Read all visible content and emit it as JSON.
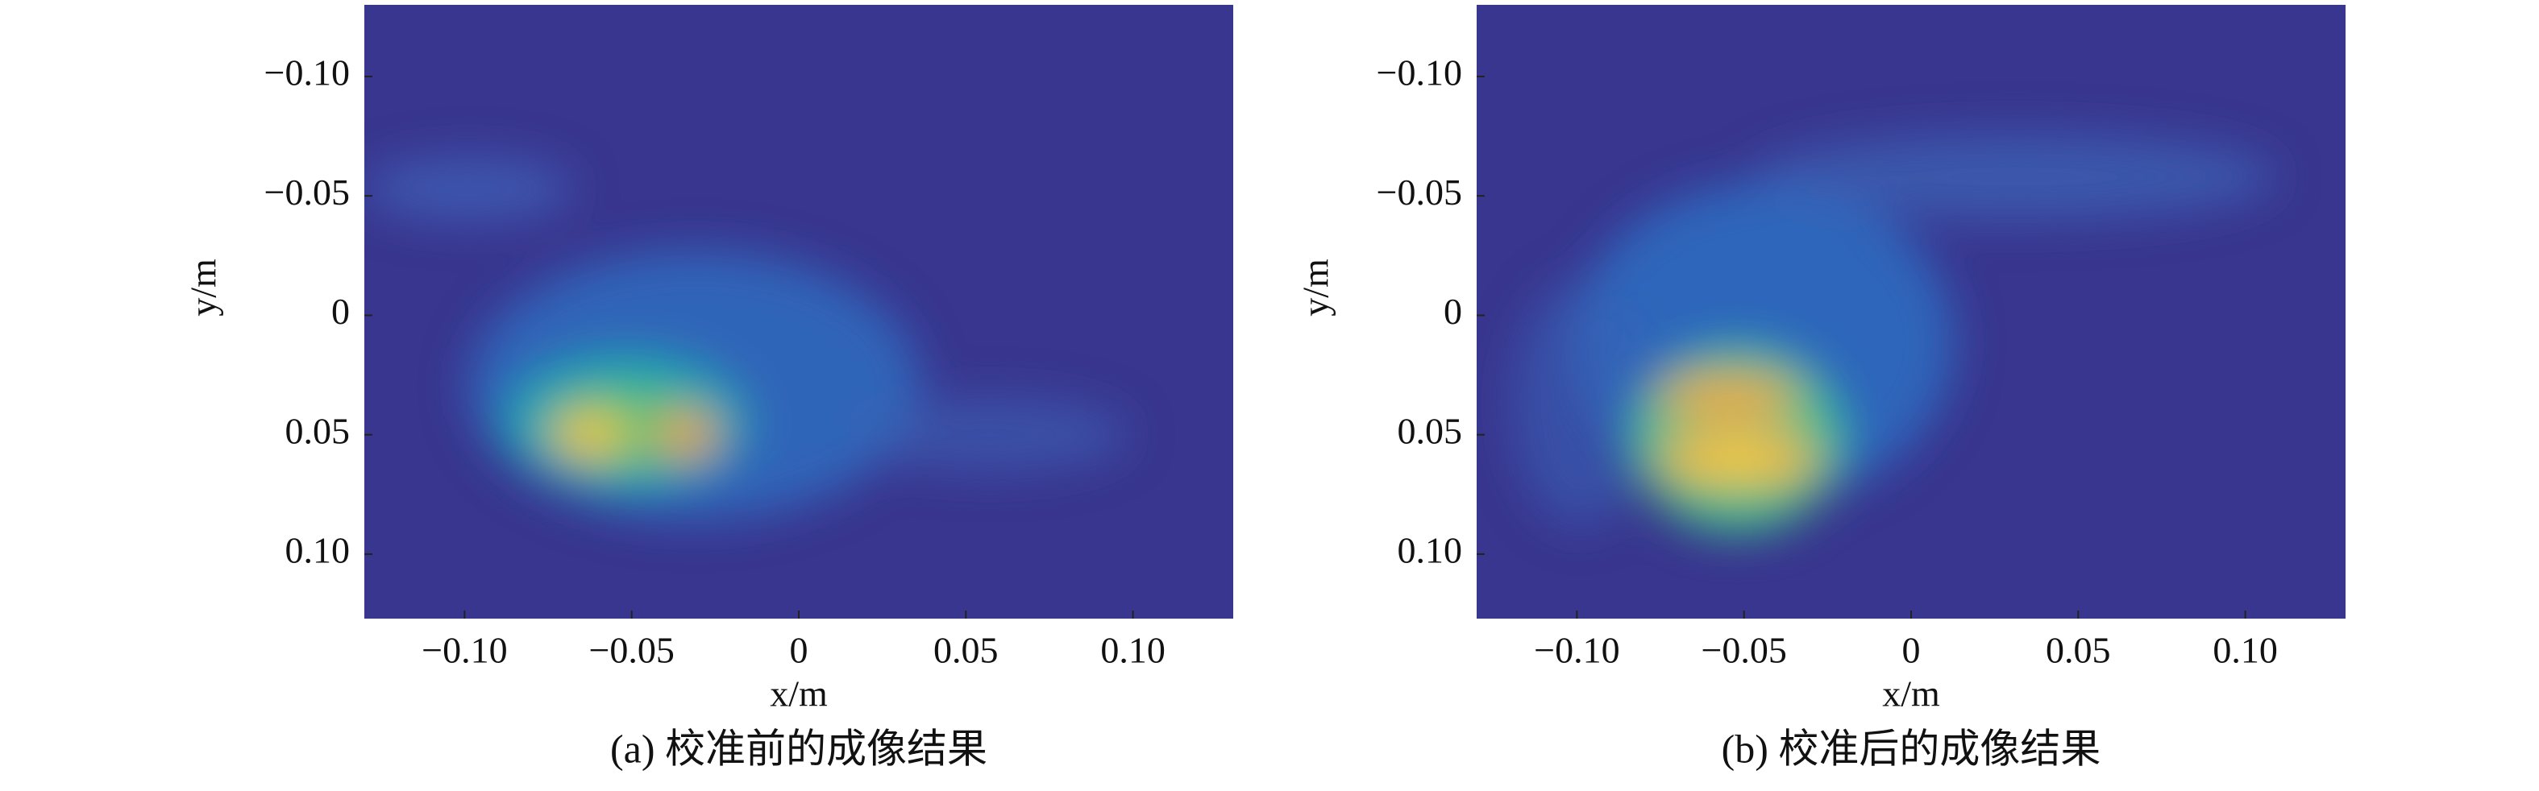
{
  "chart_data": [
    {
      "type": "heatmap",
      "caption": "(a) 校准前的成像结果",
      "xlabel": "x/m",
      "ylabel": "y/m",
      "xlim": [
        -0.13,
        0.13
      ],
      "ylim": [
        -0.13,
        0.127
      ],
      "y_inverted": true,
      "xticks": [
        {
          "value": -0.1,
          "label": "−0.10"
        },
        {
          "value": -0.05,
          "label": "−0.05"
        },
        0,
        {
          "value": 0.05,
          "label": "0.05"
        },
        {
          "value": 0.1,
          "label": "0.10"
        }
      ],
      "yticks": [
        {
          "value": -0.1,
          "label": "−0.10"
        },
        {
          "value": -0.05,
          "label": "−0.05"
        },
        0,
        {
          "value": 0.05,
          "label": "0.05"
        },
        {
          "value": 0.1,
          "label": "0.10"
        }
      ]
    },
    {
      "type": "heatmap",
      "caption": "(b) 校准后的成像结果",
      "xlabel": "x/m",
      "ylabel": "y/m",
      "xlim": [
        -0.13,
        0.13
      ],
      "ylim": [
        -0.13,
        0.127
      ],
      "y_inverted": true,
      "xticks": [
        {
          "value": -0.1,
          "label": "−0.10"
        },
        {
          "value": -0.05,
          "label": "−0.05"
        },
        0,
        {
          "value": 0.05,
          "label": "0.05"
        },
        {
          "value": 0.1,
          "label": "0.10"
        }
      ],
      "yticks": [
        {
          "value": -0.1,
          "label": "−0.10"
        },
        {
          "value": -0.05,
          "label": "−0.05"
        },
        0,
        {
          "value": 0.05,
          "label": "0.05"
        },
        {
          "value": 0.1,
          "label": "0.10"
        }
      ]
    }
  ]
}
